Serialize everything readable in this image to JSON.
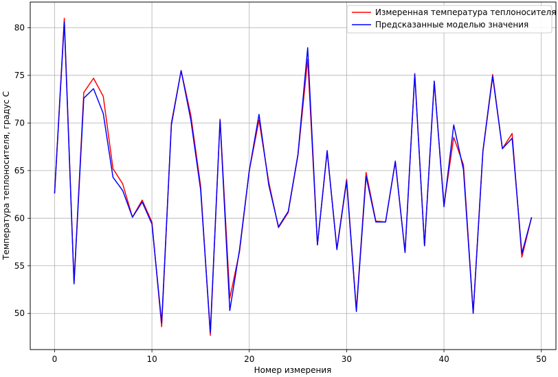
{
  "chart_data": {
    "type": "line",
    "title": "",
    "xlabel": "Номер измерения",
    "ylabel": "Температура теплоносителя, градус С",
    "xlim": [
      -2.5,
      51.5
    ],
    "ylim": [
      46.2,
      82.7
    ],
    "xticks": [
      0,
      10,
      20,
      30,
      40,
      50
    ],
    "yticks": [
      50,
      55,
      60,
      65,
      70,
      75,
      80
    ],
    "grid": true,
    "legend_position": "top-right",
    "x": [
      0,
      1,
      2,
      3,
      4,
      5,
      6,
      7,
      8,
      9,
      10,
      11,
      12,
      13,
      14,
      15,
      16,
      17,
      18,
      19,
      20,
      21,
      22,
      23,
      24,
      25,
      26,
      27,
      28,
      29,
      30,
      31,
      32,
      33,
      34,
      35,
      36,
      37,
      38,
      39,
      40,
      41,
      42,
      43,
      44,
      45,
      46,
      47,
      48,
      49
    ],
    "series": [
      {
        "name": "Измеренная температура теплоносителя",
        "color": "#ff0000",
        "values": [
          62.6,
          81.0,
          53.2,
          73.2,
          74.7,
          72.8,
          65.2,
          63.6,
          60.1,
          61.9,
          59.6,
          48.6,
          70.0,
          75.5,
          70.8,
          63.4,
          47.7,
          70.4,
          51.6,
          56.5,
          65.0,
          70.3,
          63.8,
          59.0,
          60.6,
          66.6,
          76.7,
          57.2,
          67.0,
          56.8,
          64.1,
          50.4,
          64.8,
          59.7,
          59.6,
          65.9,
          56.4,
          75.2,
          57.1,
          74.3,
          61.4,
          68.5,
          65.6,
          50.1,
          67.1,
          75.1,
          67.3,
          68.9,
          55.9,
          60.1
        ]
      },
      {
        "name": "Предсказанные моделью значения",
        "color": "#0000ff",
        "values": [
          62.6,
          80.6,
          53.1,
          72.6,
          73.6,
          71.0,
          64.3,
          62.9,
          60.1,
          61.7,
          59.4,
          49.0,
          69.8,
          75.5,
          70.3,
          63.0,
          48.0,
          70.3,
          50.3,
          56.7,
          65.0,
          70.9,
          63.5,
          59.1,
          60.7,
          66.7,
          77.9,
          57.2,
          67.1,
          56.7,
          63.9,
          50.2,
          64.4,
          59.6,
          59.6,
          66.0,
          56.4,
          75.1,
          57.1,
          74.4,
          61.2,
          69.8,
          65.1,
          50.0,
          67.0,
          74.9,
          67.3,
          68.4,
          56.3,
          60.1
        ]
      }
    ]
  }
}
